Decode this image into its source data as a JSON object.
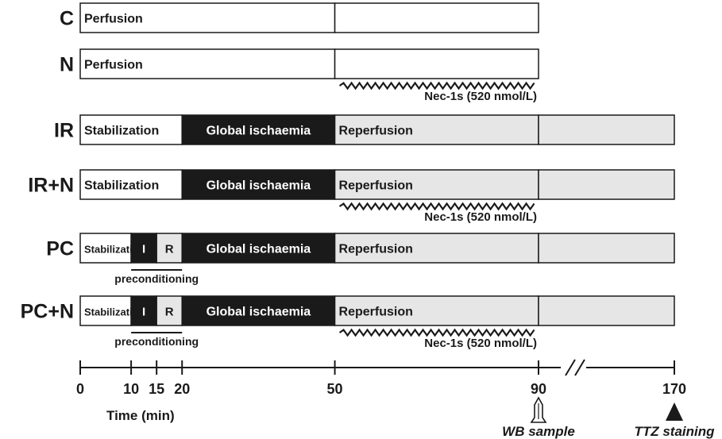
{
  "colors": {
    "black": "#1a1a1a",
    "white": "#ffffff",
    "grey": "#e6e6e6"
  },
  "groups": [
    {
      "label": "C",
      "segments": [
        {
          "start": 0,
          "end": 50,
          "text": "Perfusion",
          "fill": "white",
          "size": "normal"
        },
        {
          "start": 50,
          "end": 90,
          "text": "",
          "fill": "white",
          "size": "normal"
        }
      ],
      "drug": null,
      "preconditioning": null
    },
    {
      "label": "N",
      "segments": [
        {
          "start": 0,
          "end": 50,
          "text": "Perfusion",
          "fill": "white",
          "size": "normal"
        },
        {
          "start": 50,
          "end": 90,
          "text": "",
          "fill": "white",
          "size": "normal"
        }
      ],
      "drug": {
        "start": 50,
        "end": 90,
        "text": "Nec-1s (520 nmol/L)"
      },
      "preconditioning": null
    },
    {
      "label": "IR",
      "segments": [
        {
          "start": 0,
          "end": 20,
          "text": "Stabilization",
          "fill": "white",
          "size": "normal"
        },
        {
          "start": 20,
          "end": 50,
          "text": "Global ischaemia",
          "fill": "black",
          "size": "normal",
          "align": "center"
        },
        {
          "start": 50,
          "end": 90,
          "text": "Reperfusion",
          "fill": "grey",
          "size": "normal"
        },
        {
          "start": 90,
          "end": 170,
          "text": "",
          "fill": "grey",
          "size": "normal"
        }
      ],
      "drug": null,
      "preconditioning": null
    },
    {
      "label": "IR+N",
      "segments": [
        {
          "start": 0,
          "end": 20,
          "text": "Stabilization",
          "fill": "white",
          "size": "normal"
        },
        {
          "start": 20,
          "end": 50,
          "text": "Global ischaemia",
          "fill": "black",
          "size": "normal",
          "align": "center"
        },
        {
          "start": 50,
          "end": 90,
          "text": "Reperfusion",
          "fill": "grey",
          "size": "normal"
        },
        {
          "start": 90,
          "end": 170,
          "text": "",
          "fill": "grey",
          "size": "normal"
        }
      ],
      "drug": {
        "start": 50,
        "end": 90,
        "text": "Nec-1s (520 nmol/L)"
      },
      "preconditioning": null
    },
    {
      "label": "PC",
      "segments": [
        {
          "start": 0,
          "end": 10,
          "text": "Stabilization",
          "fill": "white",
          "size": "small"
        },
        {
          "start": 10,
          "end": 15,
          "text": "I",
          "fill": "black",
          "size": "mid",
          "align": "center"
        },
        {
          "start": 15,
          "end": 20,
          "text": "R",
          "fill": "grey",
          "size": "mid",
          "align": "center"
        },
        {
          "start": 20,
          "end": 50,
          "text": "Global ischaemia",
          "fill": "black",
          "size": "normal",
          "align": "center"
        },
        {
          "start": 50,
          "end": 90,
          "text": "Reperfusion",
          "fill": "grey",
          "size": "normal"
        },
        {
          "start": 90,
          "end": 170,
          "text": "",
          "fill": "grey",
          "size": "normal"
        }
      ],
      "drug": null,
      "preconditioning": {
        "start": 10,
        "end": 20,
        "text": "preconditioning"
      }
    },
    {
      "label": "PC+N",
      "segments": [
        {
          "start": 0,
          "end": 10,
          "text": "Stabilization",
          "fill": "white",
          "size": "small"
        },
        {
          "start": 10,
          "end": 15,
          "text": "I",
          "fill": "black",
          "size": "mid",
          "align": "center"
        },
        {
          "start": 15,
          "end": 20,
          "text": "R",
          "fill": "grey",
          "size": "mid",
          "align": "center"
        },
        {
          "start": 20,
          "end": 50,
          "text": "Global ischaemia",
          "fill": "black",
          "size": "normal",
          "align": "center"
        },
        {
          "start": 50,
          "end": 90,
          "text": "Reperfusion",
          "fill": "grey",
          "size": "normal"
        },
        {
          "start": 90,
          "end": 170,
          "text": "",
          "fill": "grey",
          "size": "normal"
        }
      ],
      "drug": {
        "start": 50,
        "end": 90,
        "text": "Nec-1s (520 nmol/L)"
      },
      "preconditioning": {
        "start": 10,
        "end": 20,
        "text": "preconditioning"
      }
    }
  ],
  "axis": {
    "title": "Time (min)",
    "ticks": [
      0,
      10,
      15,
      20,
      50,
      90,
      170
    ],
    "break_between": [
      90,
      170
    ]
  },
  "markers": [
    {
      "time": 90,
      "text": "WB sample",
      "icon": "open-arrow-up-icon"
    },
    {
      "time": 170,
      "text": "TTZ staining",
      "icon": "filled-triangle-up-icon"
    }
  ]
}
